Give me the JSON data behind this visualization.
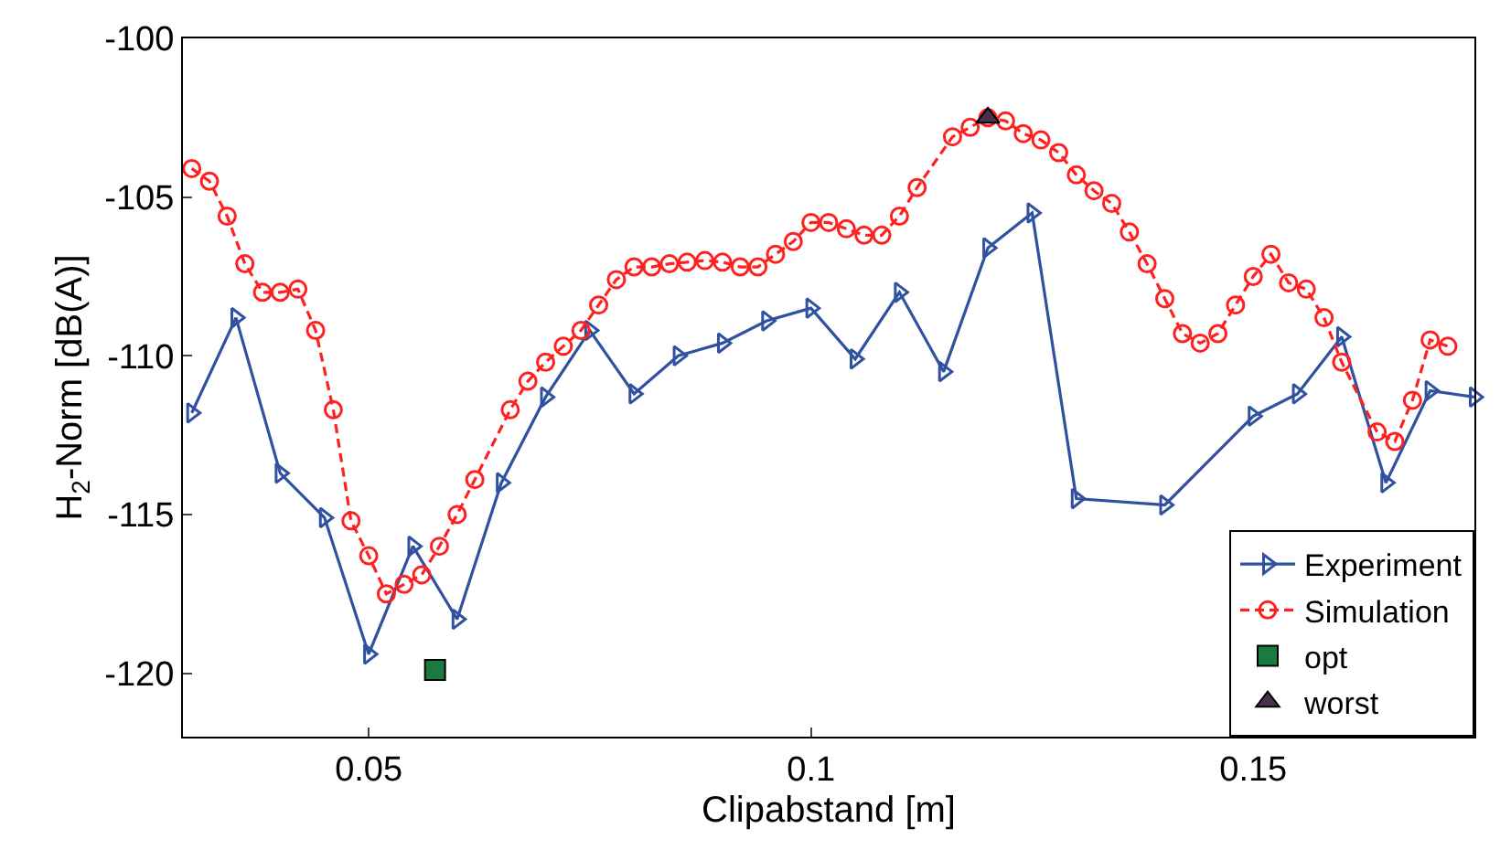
{
  "chart_data": {
    "type": "line",
    "xlabel": "Clipabstand [m]",
    "ylabel": "H$_{2}$-Norm [dB(A)]",
    "xlim": [
      0.029,
      0.175
    ],
    "xticks": [
      0.05,
      0.1,
      0.15
    ],
    "ylim": [
      -122,
      -100
    ],
    "yticks": [
      -120,
      -115,
      -110,
      -105,
      -100
    ],
    "legend": "bottom right",
    "series": [
      {
        "name": "Experiment",
        "marker": "triangle",
        "line_style": "solid",
        "color": "#3050a0",
        "x": [
          0.03,
          0.035,
          0.04,
          0.045,
          0.05,
          0.055,
          0.06,
          0.065,
          0.07,
          0.075,
          0.08,
          0.085,
          0.09,
          0.095,
          0.1,
          0.105,
          0.11,
          0.115,
          0.12,
          0.125,
          0.13,
          0.14,
          0.15,
          0.155,
          0.16,
          0.165,
          0.17,
          0.175
        ],
        "values": [
          -111.8,
          -108.8,
          -113.7,
          -115.1,
          -119.4,
          -116.0,
          -118.3,
          -114.0,
          -111.3,
          -109.2,
          -111.2,
          -110.0,
          -109.6,
          -108.9,
          -108.5,
          -110.1,
          -108.0,
          -110.5,
          -106.6,
          -105.5,
          -114.5,
          -114.7,
          -111.9,
          -111.2,
          -109.4,
          -114.0,
          -111.1,
          -111.3
        ]
      },
      {
        "name": "Simulation",
        "marker": "circle",
        "line_style": "dashed",
        "color": "#ff2020",
        "x": [
          0.03,
          0.032,
          0.034,
          0.036,
          0.038,
          0.04,
          0.042,
          0.044,
          0.046,
          0.048,
          0.05,
          0.052,
          0.054,
          0.056,
          0.058,
          0.06,
          0.062,
          0.066,
          0.068,
          0.07,
          0.072,
          0.074,
          0.076,
          0.078,
          0.08,
          0.082,
          0.084,
          0.086,
          0.088,
          0.09,
          0.092,
          0.094,
          0.096,
          0.098,
          0.1,
          0.102,
          0.104,
          0.106,
          0.108,
          0.11,
          0.112,
          0.116,
          0.118,
          0.12,
          0.122,
          0.124,
          0.126,
          0.128,
          0.13,
          0.132,
          0.134,
          0.136,
          0.138,
          0.14,
          0.142,
          0.144,
          0.146,
          0.148,
          0.15,
          0.152,
          0.154,
          0.156,
          0.158,
          0.16,
          0.164,
          0.166,
          0.168,
          0.17,
          0.172
        ],
        "values": [
          -104.1,
          -104.5,
          -105.6,
          -107.1,
          -108.0,
          -108.0,
          -107.9,
          -109.2,
          -111.7,
          -115.2,
          -116.3,
          -117.5,
          -117.2,
          -116.9,
          -116.0,
          -115.0,
          -113.9,
          -111.7,
          -110.8,
          -110.2,
          -109.7,
          -109.2,
          -108.4,
          -107.6,
          -107.2,
          -107.2,
          -107.1,
          -107.05,
          -107.0,
          -107.05,
          -107.2,
          -107.2,
          -106.8,
          -106.4,
          -105.8,
          -105.8,
          -106.0,
          -106.2,
          -106.2,
          -105.6,
          -104.7,
          -103.1,
          -102.8,
          -102.5,
          -102.6,
          -103.0,
          -103.2,
          -103.6,
          -104.3,
          -104.8,
          -105.2,
          -106.1,
          -107.1,
          -108.2,
          -109.3,
          -109.6,
          -109.3,
          -108.4,
          -107.5,
          -106.8,
          -107.7,
          -107.9,
          -108.8,
          -110.2,
          -112.4,
          -112.7,
          -111.4,
          -109.5,
          -109.7
        ]
      },
      {
        "name": "opt",
        "type": "scatter",
        "marker": "square",
        "color": "#1a7a40",
        "x": [
          0.0575
        ],
        "values": [
          -119.9
        ]
      },
      {
        "name": "worst",
        "type": "scatter",
        "marker": "triangle",
        "color": "#4a3050",
        "x": [
          0.12
        ],
        "values": [
          -102.5
        ]
      }
    ]
  }
}
